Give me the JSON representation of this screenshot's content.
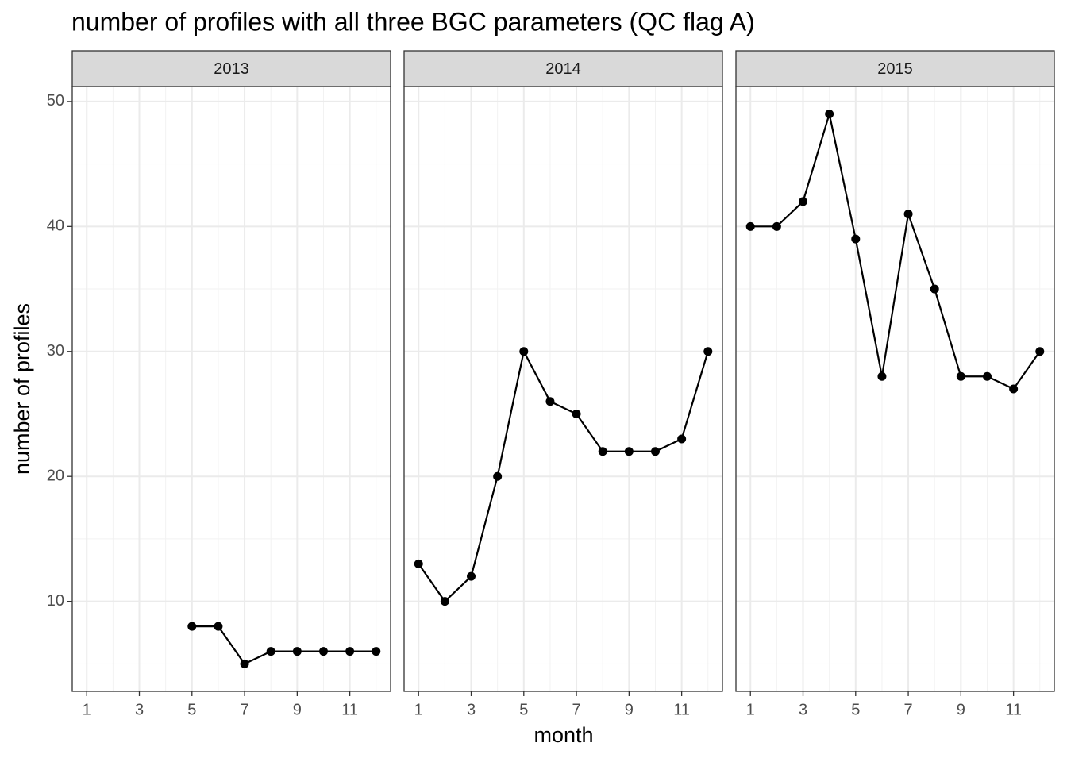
{
  "title": "number of profiles with all three BGC parameters (QC flag A)",
  "x_label": "month",
  "y_label": "number of profiles",
  "chart_data": [
    {
      "type": "line",
      "title": "2013",
      "color": "#000000",
      "x": [
        5,
        6,
        7,
        8,
        9,
        10,
        11,
        12
      ],
      "values": [
        8,
        8,
        5,
        6,
        6,
        6,
        6,
        6
      ],
      "xlim": [
        0.45,
        12.55
      ],
      "xticks": [
        1,
        3,
        5,
        7,
        9,
        11
      ],
      "xminor": [
        2,
        4,
        6,
        8,
        10,
        12
      ],
      "ylim": [
        2.8,
        51.2
      ],
      "yticks": [
        10,
        20,
        30,
        40,
        50
      ],
      "yminor": [
        5,
        15,
        25,
        35,
        45
      ],
      "grid": true
    },
    {
      "type": "line",
      "title": "2014",
      "color": "#000000",
      "x": [
        1,
        2,
        3,
        4,
        5,
        6,
        7,
        8,
        9,
        10,
        11,
        12
      ],
      "values": [
        13,
        10,
        12,
        20,
        30,
        26,
        25,
        22,
        22,
        22,
        23,
        30
      ],
      "xlim": [
        0.45,
        12.55
      ],
      "xticks": [
        1,
        3,
        5,
        7,
        9,
        11
      ],
      "xminor": [
        2,
        4,
        6,
        8,
        10,
        12
      ],
      "ylim": [
        2.8,
        51.2
      ],
      "yticks": [
        10,
        20,
        30,
        40,
        50
      ],
      "yminor": [
        5,
        15,
        25,
        35,
        45
      ],
      "grid": true
    },
    {
      "type": "line",
      "title": "2015",
      "color": "#000000",
      "x": [
        1,
        2,
        3,
        4,
        5,
        6,
        7,
        8,
        9,
        10,
        11,
        12
      ],
      "values": [
        40,
        40,
        42,
        49,
        39,
        28,
        41,
        35,
        28,
        28,
        27,
        30
      ],
      "xlim": [
        0.45,
        12.55
      ],
      "xticks": [
        1,
        3,
        5,
        7,
        9,
        11
      ],
      "xminor": [
        2,
        4,
        6,
        8,
        10,
        12
      ],
      "ylim": [
        2.8,
        51.2
      ],
      "yticks": [
        10,
        20,
        30,
        40,
        50
      ],
      "yminor": [
        5,
        15,
        25,
        35,
        45
      ],
      "grid": true
    }
  ]
}
